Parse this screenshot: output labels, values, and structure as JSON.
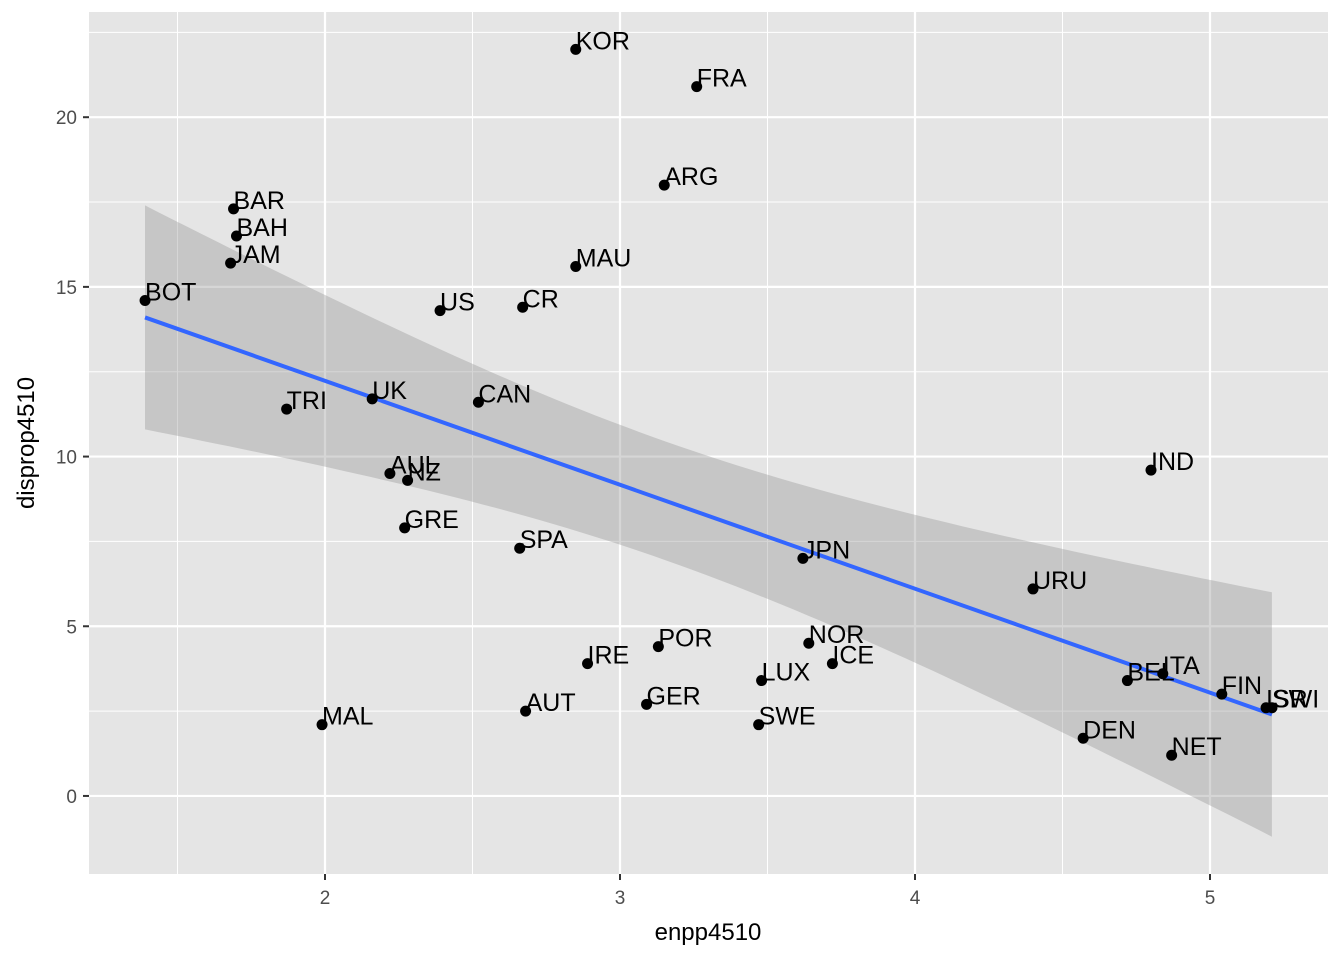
{
  "chart_data": {
    "type": "scatter",
    "xlabel": "enpp4510",
    "ylabel": "disprop4510",
    "xlim": [
      1.2,
      5.4
    ],
    "ylim": [
      -2.3,
      23.1
    ],
    "xticks": [
      2,
      3,
      4,
      5
    ],
    "yticks": [
      0,
      5,
      10,
      15,
      20
    ],
    "grid": true,
    "points": [
      {
        "label": "KOR",
        "x": 2.85,
        "y": 22.0
      },
      {
        "label": "FRA",
        "x": 3.26,
        "y": 20.9
      },
      {
        "label": "ARG",
        "x": 3.15,
        "y": 18.0
      },
      {
        "label": "BAR",
        "x": 1.69,
        "y": 17.3
      },
      {
        "label": "BAH",
        "x": 1.7,
        "y": 16.5
      },
      {
        "label": "JAM",
        "x": 1.68,
        "y": 15.7
      },
      {
        "label": "MAU",
        "x": 2.85,
        "y": 15.6
      },
      {
        "label": "BOT",
        "x": 1.39,
        "y": 14.6
      },
      {
        "label": "US",
        "x": 2.39,
        "y": 14.3
      },
      {
        "label": "CR",
        "x": 2.67,
        "y": 14.4
      },
      {
        "label": "UK",
        "x": 2.16,
        "y": 11.7
      },
      {
        "label": "CAN",
        "x": 2.52,
        "y": 11.6
      },
      {
        "label": "TRI",
        "x": 1.87,
        "y": 11.4
      },
      {
        "label": "IND",
        "x": 4.8,
        "y": 9.6
      },
      {
        "label": "AUL",
        "x": 2.22,
        "y": 9.5
      },
      {
        "label": "NZ",
        "x": 2.28,
        "y": 9.3
      },
      {
        "label": "GRE",
        "x": 2.27,
        "y": 7.9
      },
      {
        "label": "SPA",
        "x": 2.66,
        "y": 7.3
      },
      {
        "label": "JPN",
        "x": 3.62,
        "y": 7.0
      },
      {
        "label": "URU",
        "x": 4.4,
        "y": 6.1
      },
      {
        "label": "NOR",
        "x": 3.64,
        "y": 4.5
      },
      {
        "label": "POR",
        "x": 3.13,
        "y": 4.4
      },
      {
        "label": "IRE",
        "x": 2.89,
        "y": 3.9
      },
      {
        "label": "ICE",
        "x": 3.72,
        "y": 3.9
      },
      {
        "label": "LUX",
        "x": 3.48,
        "y": 3.4
      },
      {
        "label": "ITA",
        "x": 4.84,
        "y": 3.6
      },
      {
        "label": "BEL",
        "x": 4.72,
        "y": 3.4
      },
      {
        "label": "FIN",
        "x": 5.04,
        "y": 3.0
      },
      {
        "label": "ISR",
        "x": 5.19,
        "y": 2.6
      },
      {
        "label": "SWI",
        "x": 5.21,
        "y": 2.6
      },
      {
        "label": "GER",
        "x": 3.09,
        "y": 2.7
      },
      {
        "label": "AUT",
        "x": 2.68,
        "y": 2.5
      },
      {
        "label": "MAL",
        "x": 1.99,
        "y": 2.1
      },
      {
        "label": "SWE",
        "x": 3.47,
        "y": 2.1
      },
      {
        "label": "DEN",
        "x": 4.57,
        "y": 1.7
      },
      {
        "label": "NET",
        "x": 4.87,
        "y": 1.2
      }
    ],
    "fit_line": {
      "x": [
        1.39,
        5.21
      ],
      "y": [
        14.1,
        2.4
      ]
    },
    "confidence_band": {
      "x": [
        1.39,
        5.21
      ],
      "upper": [
        17.4,
        6.0
      ],
      "lower": [
        10.8,
        -1.1
      ]
    },
    "colors": {
      "panel": "#e5e5e5",
      "grid": "#ffffff",
      "point": "#000000",
      "line": "#3366ff",
      "band": "#999999"
    }
  }
}
